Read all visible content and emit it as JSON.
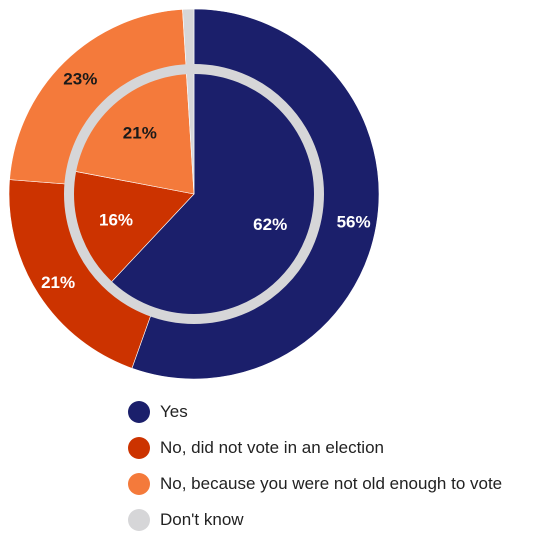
{
  "chart_data": {
    "type": "pie",
    "title": "",
    "categories": [
      "Yes",
      "No, did not vote in an election",
      "No, because you were not old enough to vote",
      "Don't know"
    ],
    "colors": [
      "#1b1f6b",
      "#cc3300",
      "#f47a3b",
      "#d6d6d8"
    ],
    "series": [
      {
        "ring": "outer",
        "values": [
          56,
          21,
          23,
          1
        ],
        "labels": [
          "56%",
          "21%",
          "23%",
          ""
        ]
      },
      {
        "ring": "inner",
        "values": [
          62,
          16,
          21,
          1
        ],
        "labels": [
          "62%",
          "16%",
          "21%",
          ""
        ]
      }
    ],
    "legend_position": "bottom"
  }
}
